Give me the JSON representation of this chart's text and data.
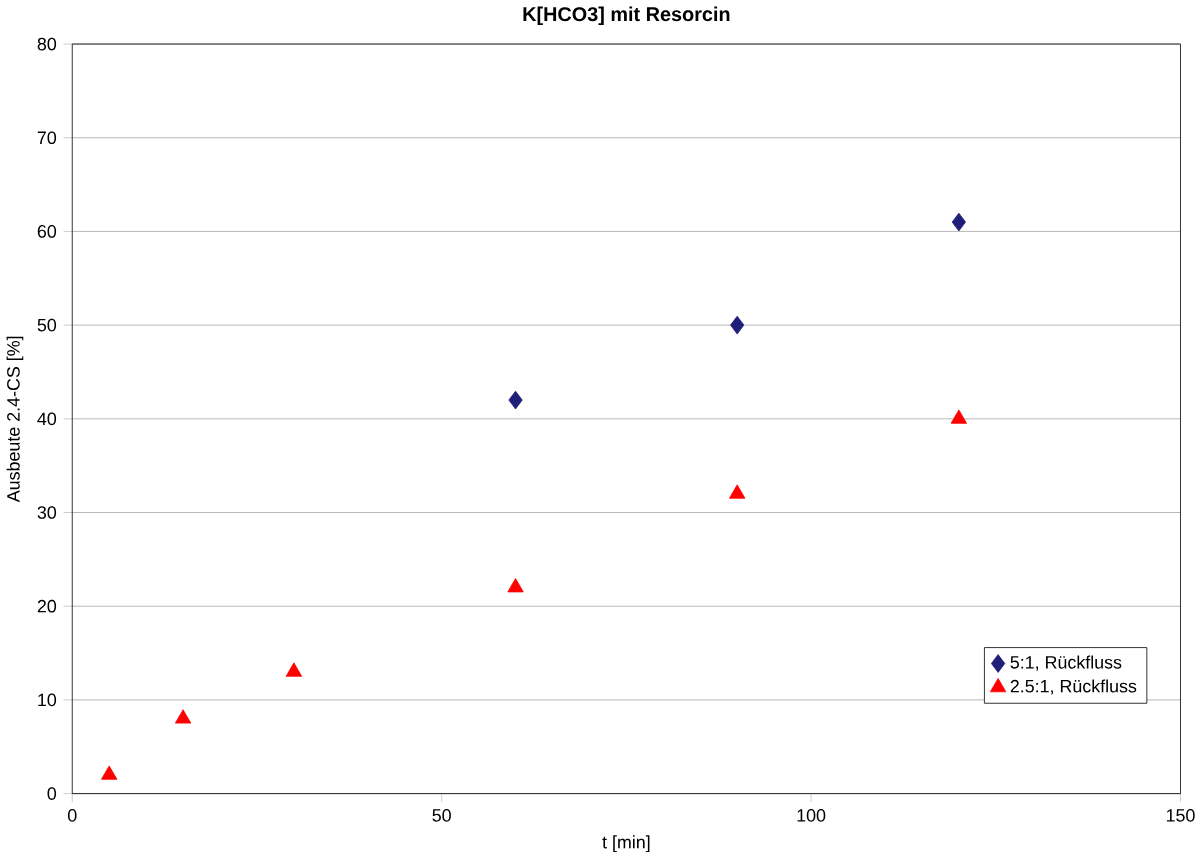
{
  "chart_data": {
    "type": "scatter",
    "title": "K[HCO3] mit Resorcin",
    "xlabel": "t [min]",
    "ylabel": "Ausbeute 2.4-CS [%]",
    "xlim": [
      0,
      150
    ],
    "xticks": [
      0,
      50,
      100,
      150
    ],
    "ylim": [
      0,
      80
    ],
    "yticks": [
      0,
      10,
      20,
      30,
      40,
      50,
      60,
      70,
      80
    ],
    "grid": "y",
    "legend": "bottom right",
    "series": [
      {
        "name": "5:1, Rückfluss",
        "color": "#1f1f7a",
        "marker": "diamond",
        "x": [
          60,
          90,
          120
        ],
        "values": [
          42,
          50,
          61
        ]
      },
      {
        "name": "2.5:1, Rückfluss",
        "color": "#ff0000",
        "marker": "triangle",
        "x": [
          5,
          15,
          30,
          60,
          90,
          120
        ],
        "values": [
          2,
          8,
          13,
          22,
          32,
          40
        ]
      }
    ]
  }
}
